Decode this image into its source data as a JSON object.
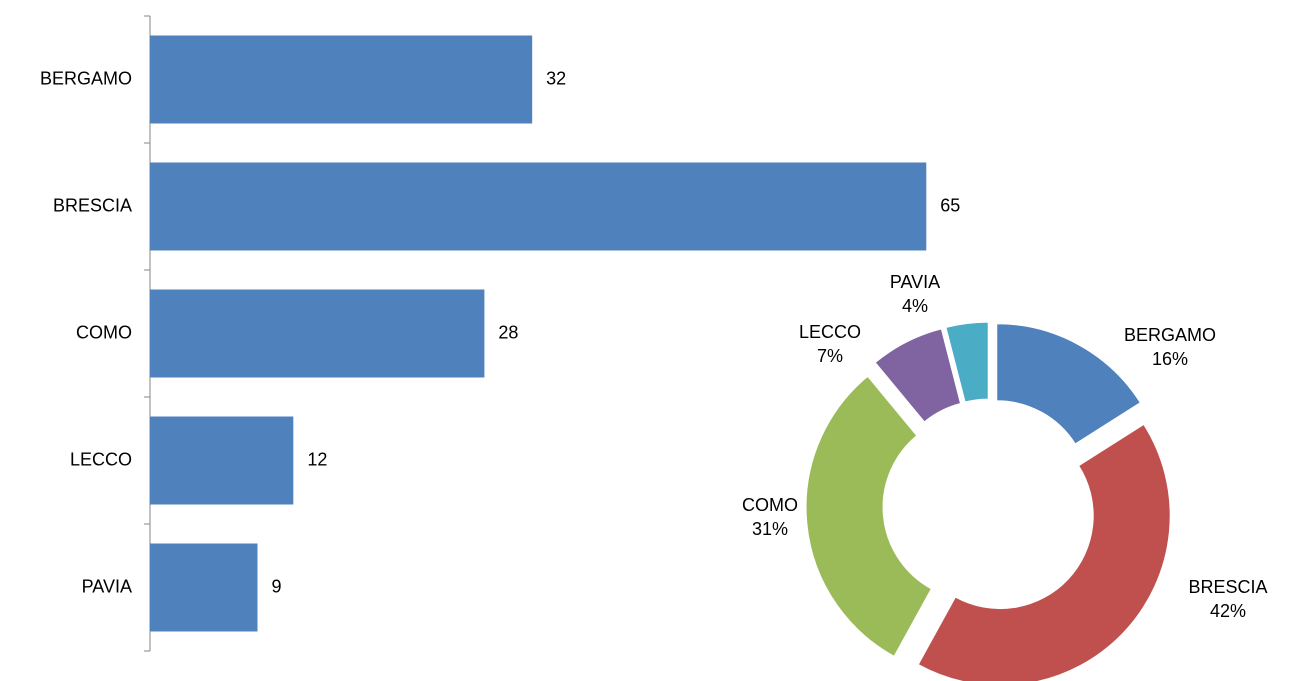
{
  "chart_data": [
    {
      "type": "hbar",
      "categories": [
        "BERGAMO",
        "BRESCIA",
        "COMO",
        "LECCO",
        "PAVIA"
      ],
      "values": [
        32,
        65,
        28,
        12,
        9
      ],
      "color": "#4f81bd",
      "xlim": [
        0,
        70
      ]
    },
    {
      "type": "donut",
      "categories": [
        "BERGAMO",
        "BRESCIA",
        "COMO",
        "LECCO",
        "PAVIA"
      ],
      "values": [
        16,
        42,
        31,
        7,
        4
      ],
      "value_labels": [
        "16%",
        "42%",
        "31%",
        "7%",
        "4%"
      ],
      "colors": [
        "#4f81bd",
        "#c0504d",
        "#9bbb59",
        "#8064a2",
        "#4bacc6"
      ]
    }
  ]
}
